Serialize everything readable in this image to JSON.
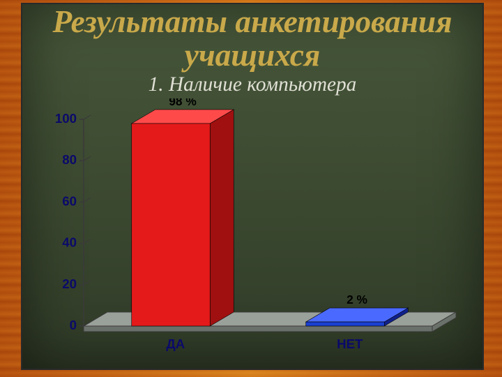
{
  "title": {
    "text": "Результаты анкетирования учащихся",
    "color": "#c9a94a",
    "fontsize_pt": 34
  },
  "subtitle": {
    "text": "1. Наличие компьютера",
    "color": "#e0e0d5",
    "fontsize_pt": 22
  },
  "chart": {
    "type": "bar-3d",
    "categories": [
      "ДА",
      "НЕТ"
    ],
    "values": [
      98,
      2
    ],
    "value_labels": [
      "98 %",
      "2 %"
    ],
    "bar_colors": [
      "#e41a1a",
      "#1a3fd1"
    ],
    "bar_top_colors": [
      "#ff4a4a",
      "#4a6aff"
    ],
    "bar_side_colors": [
      "#a01010",
      "#10208a"
    ],
    "ylim": [
      0,
      100
    ],
    "ytick_step": 20,
    "yticks": [
      0,
      20,
      40,
      60,
      80,
      100
    ],
    "axis_text_color": "#0a0a6a",
    "bar_label_color": "#000000",
    "floor_top_color": "#9aa09a",
    "floor_side_color": "#6a706a",
    "grid_color": "#3a3a3a",
    "bar_width_ratio": 0.45,
    "depth_x": 34,
    "depth_y": 20,
    "tick_fontsize_pt": 14,
    "category_fontsize_pt": 14,
    "value_label_fontsize_pt": 13
  }
}
